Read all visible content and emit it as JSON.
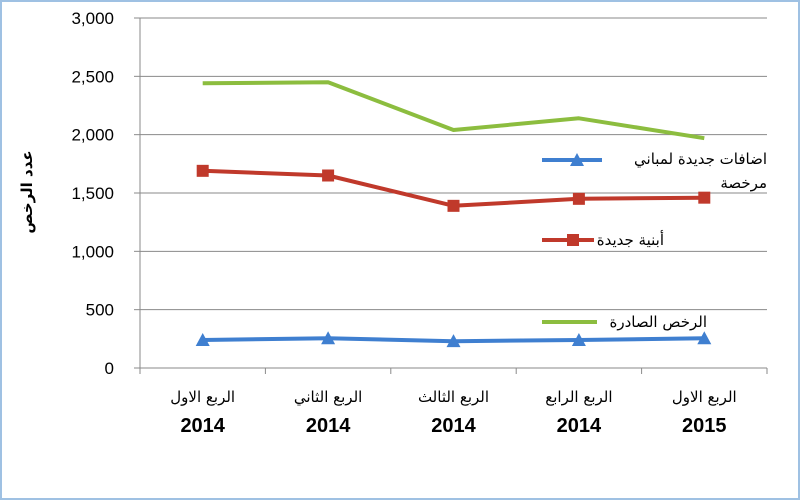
{
  "chart_data": {
    "type": "line",
    "title": "",
    "ylabel": "عدد الرخص",
    "xlabel": "",
    "ylim": [
      0,
      3000
    ],
    "yticks": [
      "0",
      "500",
      "1,000",
      "1,500",
      "2,000",
      "2,500",
      "3,000"
    ],
    "grid": true,
    "legend_position": "right",
    "categories": [
      {
        "line1": "الربع الاول",
        "line2": "2014"
      },
      {
        "line1": "الربع الثاني",
        "line2": "2014"
      },
      {
        "line1": "الربع الثالث",
        "line2": "2014"
      },
      {
        "line1": "الربع الرابع",
        "line2": "2014"
      },
      {
        "line1": "الربع الاول",
        "line2": "2015"
      }
    ],
    "series": [
      {
        "name": "الرخص الصادرة",
        "color": "#8cbd3f",
        "marker": "none",
        "values": [
          2440,
          2450,
          2040,
          2140,
          1970
        ]
      },
      {
        "name": "أبنية جديدة",
        "color": "#c0392b",
        "marker": "square",
        "values": [
          1690,
          1650,
          1390,
          1450,
          1460
        ]
      },
      {
        "name": "اضافات جديدة لمباني مرخصة",
        "color": "#3f7fd0",
        "marker": "triangle",
        "values": [
          240,
          255,
          230,
          240,
          255
        ]
      }
    ]
  }
}
